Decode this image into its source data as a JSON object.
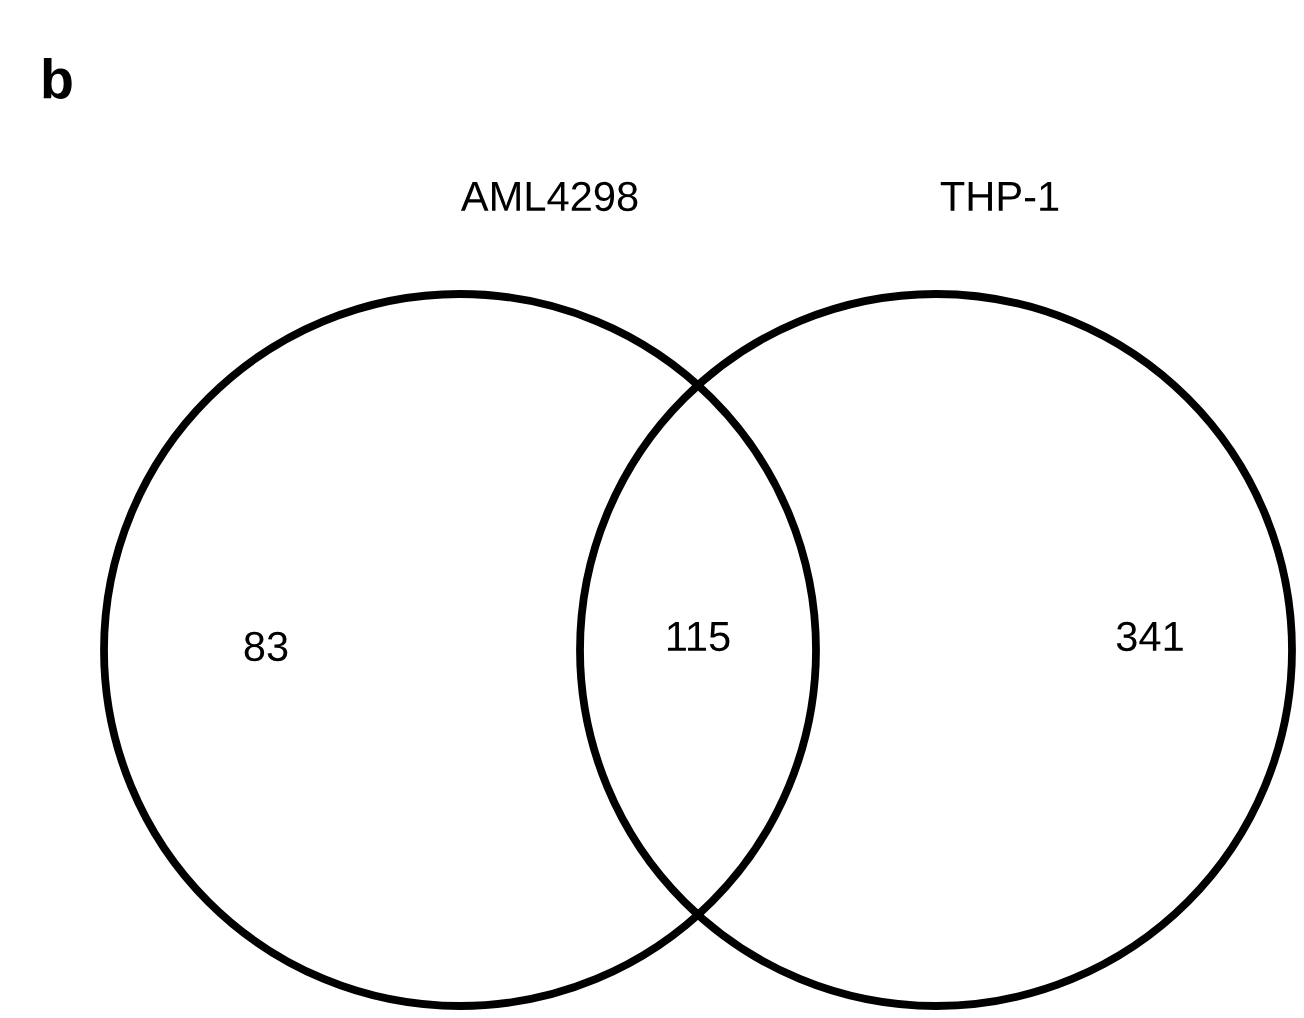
{
  "chart_data": {
    "type": "other",
    "title": "b",
    "annotations": [
      "AML4298",
      "THP-1"
    ],
    "categories": [
      null,
      null,
      null
    ],
    "values": [
      83,
      115,
      341
    ],
    "data_labels": true
  }
}
